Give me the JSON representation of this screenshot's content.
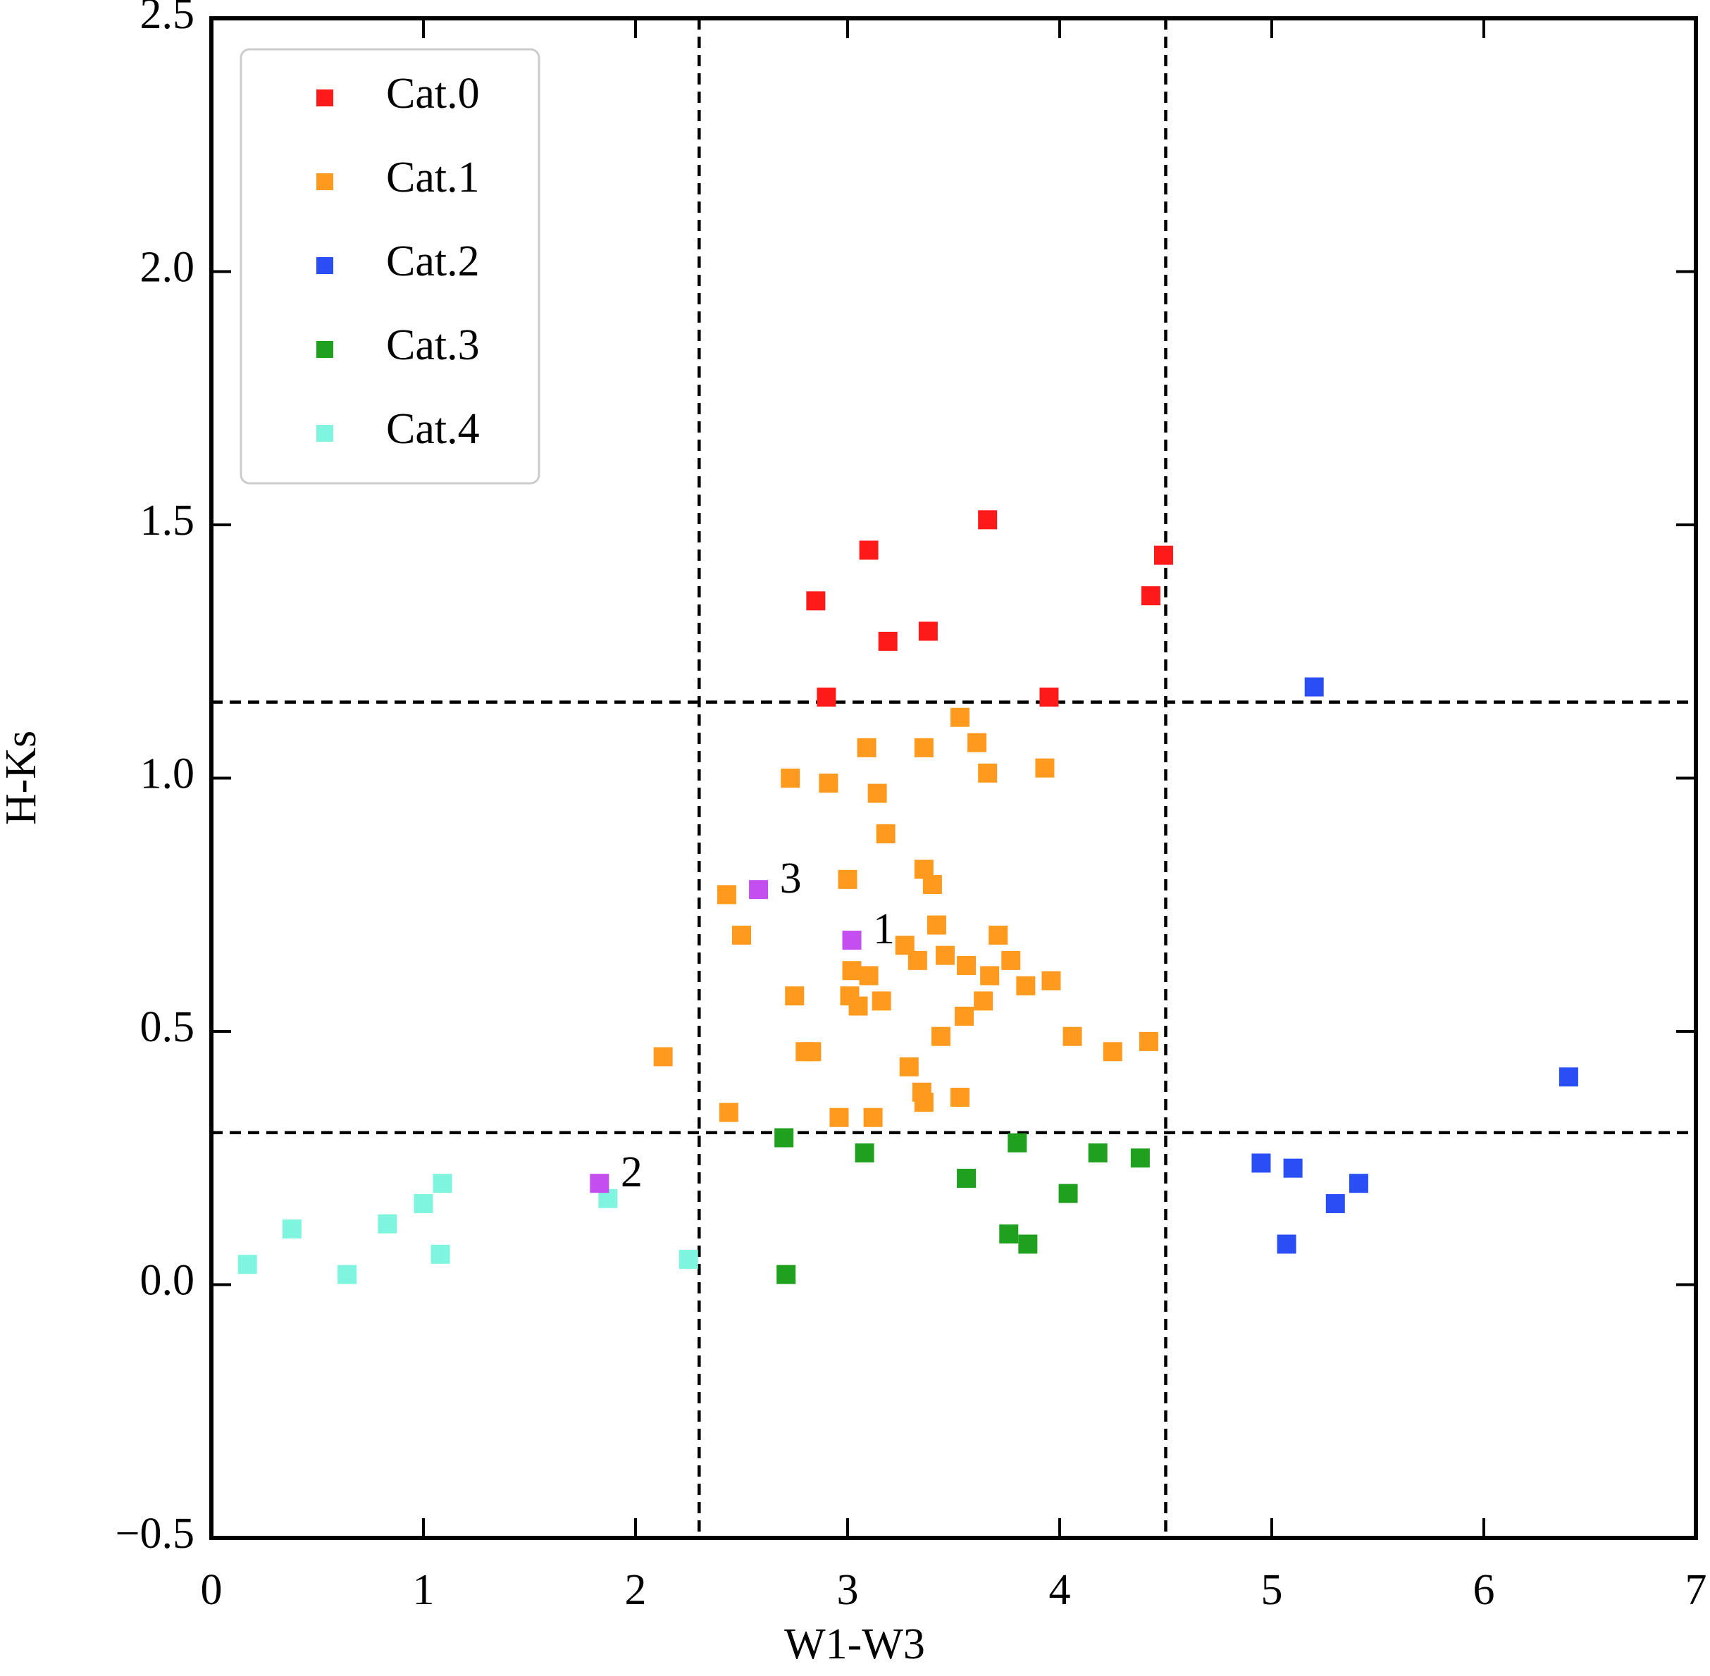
{
  "chart_data": {
    "type": "scatter",
    "xlabel": "W1-W3",
    "ylabel": "H-Ks",
    "xlim": [
      0,
      7
    ],
    "ylim": [
      -0.5,
      2.5
    ],
    "xticks": [
      0,
      1,
      2,
      3,
      4,
      5,
      6,
      7
    ],
    "yticks": [
      {
        "value": -0.5,
        "label": "−0.5"
      },
      {
        "value": 0,
        "label": "0.0"
      },
      0.5,
      {
        "value": 1,
        "label": "1.0"
      },
      1.5,
      {
        "value": 2,
        "label": "2.0"
      },
      2.5
    ],
    "vlines": [
      2.3,
      4.5
    ],
    "hlines": [
      0.3,
      1.15
    ],
    "legend": "upper left",
    "series": [
      {
        "name": "Cat.0",
        "color": "#ff1a1a",
        "x": [
          2.85,
          3.1,
          3.66,
          3.19,
          3.38,
          2.9,
          3.95,
          4.43,
          4.49
        ],
        "values": [
          1.35,
          1.45,
          1.51,
          1.27,
          1.29,
          1.16,
          1.16,
          1.36,
          1.44
        ]
      },
      {
        "name": "Cat.1",
        "color": "#ff9a1f",
        "x": [
          2.13,
          2.43,
          2.5,
          2.44,
          2.73,
          2.91,
          2.75,
          2.8,
          2.83,
          2.96,
          3.0,
          3.02,
          3.01,
          3.05,
          3.1,
          3.09,
          3.14,
          3.18,
          3.16,
          3.12,
          3.27,
          3.33,
          3.29,
          3.36,
          3.36,
          3.4,
          3.35,
          3.36,
          3.42,
          3.46,
          3.44,
          3.53,
          3.53,
          3.61,
          3.66,
          3.56,
          3.55,
          3.64,
          3.67,
          3.71,
          3.77,
          3.84,
          3.96,
          3.93,
          4.06,
          4.25,
          4.42
        ],
        "values": [
          0.45,
          0.77,
          0.69,
          0.34,
          1.0,
          0.99,
          0.57,
          0.46,
          0.46,
          0.33,
          0.8,
          0.62,
          0.57,
          0.55,
          0.61,
          1.06,
          0.97,
          0.89,
          0.56,
          0.33,
          0.67,
          0.64,
          0.43,
          1.06,
          0.82,
          0.79,
          0.38,
          0.36,
          0.71,
          0.65,
          0.49,
          0.37,
          1.12,
          1.07,
          1.01,
          0.63,
          0.53,
          0.56,
          0.61,
          0.69,
          0.64,
          0.59,
          0.6,
          1.02,
          0.49,
          0.46,
          0.48
        ]
      },
      {
        "name": "Cat.2",
        "color": "#2a4ef5",
        "x": [
          5.2,
          6.4,
          4.95,
          5.1,
          5.3,
          5.41,
          5.07
        ],
        "values": [
          1.18,
          0.41,
          0.24,
          0.23,
          0.16,
          0.2,
          0.08
        ]
      },
      {
        "name": "Cat.3",
        "color": "#1fa01f",
        "x": [
          2.7,
          2.71,
          3.08,
          3.56,
          3.8,
          3.76,
          3.85,
          4.04,
          4.18,
          4.38
        ],
        "values": [
          0.29,
          0.02,
          0.26,
          0.21,
          0.28,
          0.1,
          0.08,
          0.18,
          0.26,
          0.25
        ]
      },
      {
        "name": "Cat.4",
        "color": "#7ff5e0",
        "x": [
          0.17,
          0.38,
          0.64,
          0.83,
          1.0,
          1.09,
          1.08,
          1.87,
          2.25
        ],
        "values": [
          0.04,
          0.11,
          0.02,
          0.12,
          0.16,
          0.2,
          0.06,
          0.17,
          0.05
        ]
      }
    ],
    "highlighted": {
      "color": "#c44ef0",
      "labels": [
        "1",
        "2",
        "3"
      ],
      "x": [
        3.02,
        1.83,
        2.58
      ],
      "values": [
        0.68,
        0.2,
        0.78
      ]
    }
  }
}
